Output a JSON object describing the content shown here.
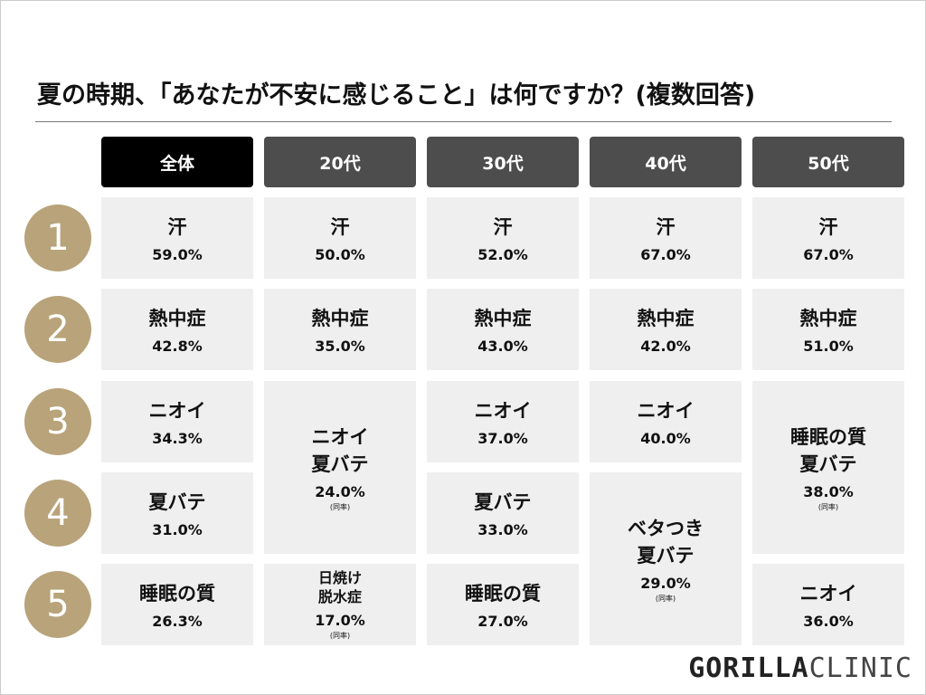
{
  "title": "夏の時期、「あなたが不安に感じること」は何ですか？(複数回答)",
  "table": {
    "header": [
      "全体",
      "20代",
      "30代",
      "40代",
      "50代"
    ],
    "ranks": [
      "1",
      "2",
      "3",
      "4",
      "5"
    ],
    "columns": [
      [
        {
          "label": [
            "汗"
          ],
          "value": "59.0%"
        },
        {
          "label": [
            "熱中症"
          ],
          "value": "42.8%"
        },
        {
          "label": [
            "ニオイ"
          ],
          "value": "34.3%"
        },
        {
          "label": [
            "夏バテ"
          ],
          "value": "31.0%"
        },
        {
          "label": [
            "睡眠の質"
          ],
          "value": "26.3%"
        }
      ],
      [
        {
          "label": [
            "汗"
          ],
          "value": "50.0%"
        },
        {
          "label": [
            "熱中症"
          ],
          "value": "35.0%"
        },
        {
          "label": [
            "ニオイ",
            "夏バテ"
          ],
          "value": "24.0%",
          "note": "(同率)"
        },
        {
          "label": [
            "日焼け",
            "脱水症"
          ],
          "value": "17.0%",
          "note": "(同率)"
        }
      ],
      [
        {
          "label": [
            "汗"
          ],
          "value": "52.0%"
        },
        {
          "label": [
            "熱中症"
          ],
          "value": "43.0%"
        },
        {
          "label": [
            "ニオイ"
          ],
          "value": "37.0%"
        },
        {
          "label": [
            "夏バテ"
          ],
          "value": "33.0%"
        },
        {
          "label": [
            "睡眠の質"
          ],
          "value": "27.0%"
        }
      ],
      [
        {
          "label": [
            "汗"
          ],
          "value": "67.0%"
        },
        {
          "label": [
            "熱中症"
          ],
          "value": "42.0%"
        },
        {
          "label": [
            "ニオイ"
          ],
          "value": "40.0%"
        },
        {
          "label": [
            "ベタつき",
            "夏バテ"
          ],
          "value": "29.0%",
          "note": "(同率)"
        }
      ],
      [
        {
          "label": [
            "汗"
          ],
          "value": "67.0%"
        },
        {
          "label": [
            "熱中症"
          ],
          "value": "51.0%"
        },
        {
          "label": [
            "睡眠の質",
            "夏バテ"
          ],
          "value": "38.0%",
          "note": "(同率)"
        },
        {
          "label": [
            "ニオイ"
          ],
          "value": "36.0%"
        }
      ]
    ]
  },
  "logo": {
    "bold": "GORILLA",
    "light": "CLINIC"
  }
}
